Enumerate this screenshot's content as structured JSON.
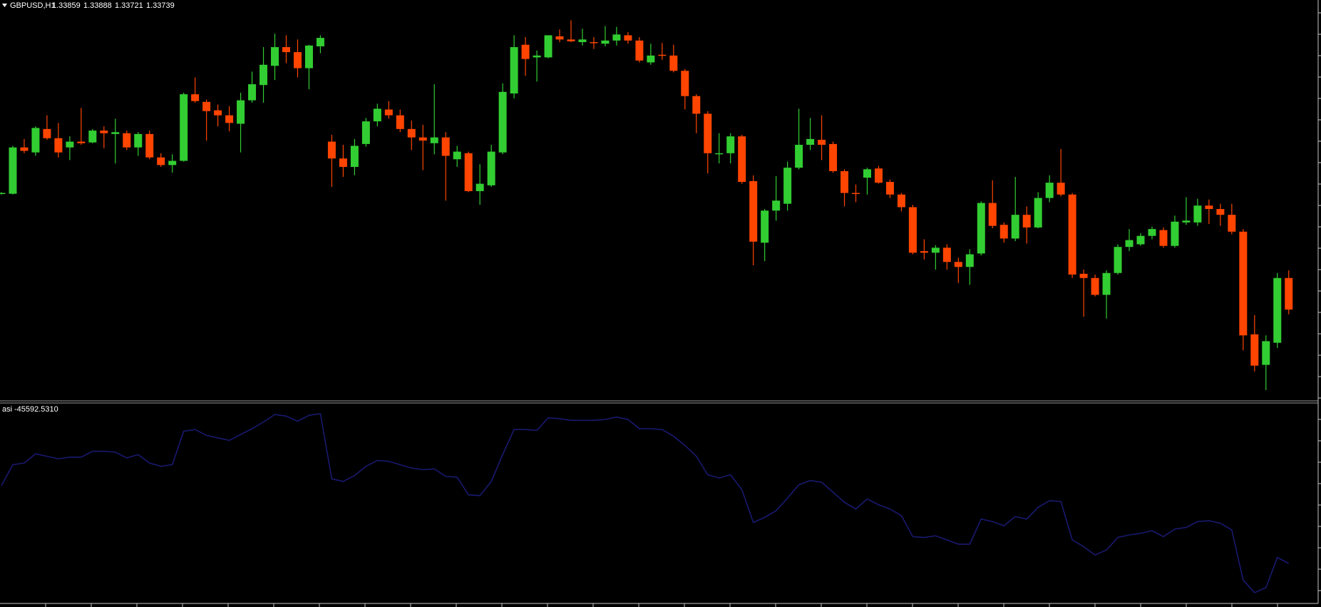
{
  "chart_data": [
    {
      "type": "candlestick",
      "title": "GBPUSD,H1",
      "open": [
        1.34179,
        1.34179,
        1.34355,
        1.34336,
        1.34425,
        1.3439,
        1.34355,
        1.34377,
        1.34374,
        1.34419,
        1.34406,
        1.34409,
        1.34355,
        1.34406,
        1.34317,
        1.34288,
        1.34304,
        1.34557,
        1.34528,
        1.34496,
        1.34477,
        1.34445,
        1.34534,
        1.34592,
        1.34665,
        1.34736,
        1.34717,
        1.34656,
        1.34739,
        1.34377,
        1.34313,
        1.34281,
        1.34368,
        1.34454,
        1.34499,
        1.34477,
        1.34425,
        1.34393,
        1.34371,
        1.34393,
        1.3431,
        1.34333,
        1.34189,
        1.34211,
        1.34336,
        1.3456,
        1.34745,
        1.34697,
        1.34697,
        1.34777,
        1.34765,
        1.34755,
        1.34755,
        1.34749,
        1.34761,
        1.34781,
        1.34761,
        1.34678,
        1.34707,
        1.34704,
        1.34646,
        1.3455,
        1.34483,
        1.34329,
        1.34333,
        1.34397,
        1.34227,
        1.33993,
        1.34115,
        1.34141,
        1.34278,
        1.34365,
        1.34384,
        1.34368,
        1.34265,
        1.34182,
        1.3424,
        1.34275,
        1.34224,
        1.34176,
        1.34128,
        1.33961,
        1.33955,
        1.33974,
        1.3392,
        1.33901,
        1.33952,
        1.34144,
        1.34061,
        1.34009,
        1.34099,
        1.34051,
        1.34163,
        1.34221,
        1.34176,
        1.33875,
        1.33859,
        1.33795,
        1.33878,
        1.33977,
        1.33987,
        1.34019,
        1.34041,
        1.33981,
        1.3407,
        1.3407,
        1.34134,
        1.34121,
        1.34099,
        1.34035,
        1.33645,
        1.33529,
        1.33613,
        1.33859
      ],
      "high": [
        1.34185,
        1.34361,
        1.34387,
        1.34435,
        1.34477,
        1.34448,
        1.34397,
        1.34505,
        1.34425,
        1.34435,
        1.34464,
        1.34419,
        1.34413,
        1.34419,
        1.34333,
        1.34329,
        1.34563,
        1.34621,
        1.34537,
        1.34518,
        1.34512,
        1.34563,
        1.34643,
        1.34736,
        1.34787,
        1.34781,
        1.34765,
        1.34745,
        1.34781,
        1.34403,
        1.34365,
        1.34387,
        1.34467,
        1.34521,
        1.34531,
        1.34499,
        1.34457,
        1.34441,
        1.34595,
        1.34413,
        1.34361,
        1.34339,
        1.34291,
        1.34365,
        1.34598,
        1.34781,
        1.34774,
        1.34723,
        1.34781,
        1.34803,
        1.34838,
        1.34806,
        1.34774,
        1.34816,
        1.34813,
        1.34793,
        1.34774,
        1.34749,
        1.34752,
        1.34745,
        1.34653,
        1.34557,
        1.34493,
        1.34409,
        1.34409,
        1.34403,
        1.34249,
        1.34121,
        1.34246,
        1.34301,
        1.34502,
        1.34467,
        1.34477,
        1.34377,
        1.34272,
        1.34214,
        1.34278,
        1.34285,
        1.34233,
        1.34182,
        1.34137,
        1.34006,
        1.33984,
        1.33987,
        1.33936,
        1.33968,
        1.3415,
        1.3423,
        1.3407,
        1.34243,
        1.34131,
        1.34185,
        1.34249,
        1.34349,
        1.34182,
        1.33891,
        1.33872,
        1.33888,
        1.33987,
        1.34045,
        1.34029,
        1.34054,
        1.34051,
        1.34096,
        1.34166,
        1.3416,
        1.34157,
        1.34141,
        1.34141,
        1.34045,
        1.33718,
        1.33641,
        1.33878,
        1.33888
      ],
      "low": [
        1.34176,
        1.34176,
        1.34333,
        1.34323,
        1.34384,
        1.34317,
        1.34307,
        1.34365,
        1.34371,
        1.34352,
        1.34294,
        1.34345,
        1.34323,
        1.3431,
        1.34281,
        1.34259,
        1.34301,
        1.34525,
        1.34381,
        1.34435,
        1.34416,
        1.34336,
        1.34525,
        1.34525,
        1.34611,
        1.34675,
        1.34621,
        1.34576,
        1.34713,
        1.34205,
        1.34243,
        1.34249,
        1.34358,
        1.34435,
        1.34464,
        1.34413,
        1.34345,
        1.34269,
        1.34329,
        1.34153,
        1.34281,
        1.34185,
        1.34137,
        1.34205,
        1.34329,
        1.34541,
        1.34627,
        1.34605,
        1.34694,
        1.34755,
        1.34755,
        1.34742,
        1.34729,
        1.34739,
        1.34742,
        1.34749,
        1.34678,
        1.34669,
        1.34688,
        1.3464,
        1.34499,
        1.34409,
        1.34256,
        1.34294,
        1.34294,
        1.34217,
        1.33907,
        1.33923,
        1.34077,
        1.34115,
        1.34272,
        1.34345,
        1.34307,
        1.34259,
        1.34131,
        1.34147,
        1.34176,
        1.34217,
        1.34163,
        1.34112,
        1.33949,
        1.33929,
        1.33891,
        1.33891,
        1.3384,
        1.33833,
        1.33945,
        1.34048,
        1.33993,
        1.33999,
        1.3399,
        1.34048,
        1.34147,
        1.34169,
        1.33859,
        1.33712,
        1.33789,
        1.33705,
        1.33872,
        1.33961,
        1.33981,
        1.34006,
        1.33974,
        1.33974,
        1.34061,
        1.34057,
        1.34064,
        1.34057,
        1.34025,
        1.33584,
        1.33504,
        1.33433,
        1.33593,
        1.33721
      ],
      "close": [
        1.34182,
        1.34355,
        1.34342,
        1.34429,
        1.3439,
        1.34336,
        1.34377,
        1.34371,
        1.34419,
        1.34409,
        1.34413,
        1.34355,
        1.34406,
        1.34317,
        1.34288,
        1.34304,
        1.34557,
        1.34531,
        1.34493,
        1.34477,
        1.34448,
        1.34534,
        1.34595,
        1.34669,
        1.34736,
        1.34717,
        1.34656,
        1.34742,
        1.34771,
        1.34313,
        1.34281,
        1.34361,
        1.34454,
        1.34502,
        1.34477,
        1.34425,
        1.34393,
        1.34381,
        1.34393,
        1.34323,
        1.34339,
        1.34189,
        1.34217,
        1.34339,
        1.34566,
        1.34736,
        1.34691,
        1.34704,
        1.34781,
        1.34765,
        1.34758,
        1.34765,
        1.34752,
        1.34761,
        1.34784,
        1.34761,
        1.34685,
        1.34704,
        1.34704,
        1.34646,
        1.3455,
        1.34483,
        1.34333,
        1.34333,
        1.34397,
        1.34224,
        1.33997,
        1.34115,
        1.34153,
        1.34278,
        1.34365,
        1.34387,
        1.34365,
        1.34265,
        1.34182,
        1.34179,
        1.34272,
        1.34221,
        1.34176,
        1.34128,
        1.33955,
        1.33955,
        1.33974,
        1.3392,
        1.33901,
        1.33949,
        1.34144,
        1.34057,
        1.34009,
        1.34099,
        1.34051,
        1.34163,
        1.34221,
        1.34176,
        1.33872,
        1.33859,
        1.33795,
        1.33878,
        1.33977,
        1.34003,
        1.34019,
        1.34045,
        1.33981,
        1.34073,
        1.34077,
        1.34134,
        1.34121,
        1.34099,
        1.34035,
        1.33641,
        1.33526,
        1.33619,
        1.33859,
        1.33739
      ],
      "ylim": [
        1.33395,
        1.34915
      ],
      "up_color": "#32cd32",
      "down_color": "#ff4500"
    },
    {
      "type": "line",
      "title": "asi",
      "values": [
        -36293,
        -33793,
        -33593,
        -32493,
        -32793,
        -33093,
        -32893,
        -32893,
        -32193,
        -32193,
        -32293,
        -32993,
        -32593,
        -33593,
        -33993,
        -33793,
        -29793,
        -29593,
        -30293,
        -30593,
        -30893,
        -30193,
        -29493,
        -28693,
        -27793,
        -27993,
        -28593,
        -27893,
        -27693,
        -35493,
        -35793,
        -35093,
        -33993,
        -33293,
        -33393,
        -33793,
        -34193,
        -34393,
        -34293,
        -35193,
        -35293,
        -37393,
        -37493,
        -35793,
        -32593,
        -29593,
        -29593,
        -29693,
        -28193,
        -28293,
        -28493,
        -28493,
        -28493,
        -28393,
        -28093,
        -28393,
        -29493,
        -29493,
        -29593,
        -30393,
        -31493,
        -32793,
        -34993,
        -35393,
        -34993,
        -36793,
        -40693,
        -40093,
        -39293,
        -37793,
        -36193,
        -35693,
        -35893,
        -37093,
        -38293,
        -39093,
        -37893,
        -38593,
        -39093,
        -39893,
        -42393,
        -42493,
        -42293,
        -42793,
        -43293,
        -43293,
        -40293,
        -40593,
        -41093,
        -39993,
        -40293,
        -38893,
        -38093,
        -38193,
        -42793,
        -43593,
        -44593,
        -43993,
        -42493,
        -42193,
        -41993,
        -41693,
        -42393,
        -41493,
        -41293,
        -40593,
        -40493,
        -40793,
        -41593,
        -47593,
        -49093,
        -48493,
        -44893,
        -45592.531
      ],
      "value_labels": [
        null,
        null,
        null,
        null,
        null,
        null,
        null,
        null,
        null,
        null,
        null,
        null,
        null,
        null,
        null,
        null,
        null,
        null,
        null,
        null,
        null,
        null,
        null,
        null,
        null,
        null,
        null,
        null,
        null,
        null,
        null,
        null,
        null,
        null,
        null,
        null,
        null,
        null,
        null,
        null,
        null,
        null,
        null,
        null,
        null,
        null,
        null,
        null,
        null,
        null,
        null,
        null,
        null,
        null,
        null,
        null,
        null,
        null,
        null,
        null,
        null,
        null,
        null,
        null,
        null,
        null,
        null,
        null,
        null,
        null,
        null,
        null,
        null,
        null,
        null,
        null,
        null,
        null,
        null,
        null,
        null,
        null,
        null,
        null,
        null,
        null,
        null,
        null,
        null,
        null,
        null,
        null,
        null,
        null,
        null,
        null,
        null,
        null,
        null,
        null,
        null,
        null,
        null,
        null,
        null,
        null,
        null,
        null,
        null,
        null,
        null,
        null,
        null,
        "-45592.5310"
      ],
      "ylim": [
        -50293,
        -26593
      ],
      "color": "#191970"
    }
  ]
}
